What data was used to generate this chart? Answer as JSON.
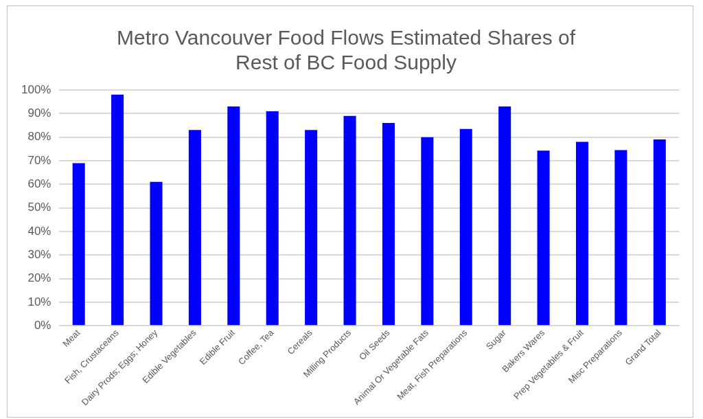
{
  "chart_data": {
    "type": "bar",
    "title": [
      "Metro Vancouver Food Flows Estimated Shares of",
      "Rest of BC Food Supply"
    ],
    "categories": [
      "Meat",
      "Fish, Crustaceans",
      "Dairy Prods; Eggs; Honey",
      "Edible Vegetables",
      "Edible Fruit",
      "Coffee, Tea",
      "Cereals",
      "Milling Products",
      "Oil Seeds",
      "Animal Or Vegetable Fats",
      "Meat, Fish Preparations",
      "Sugar",
      "Bakers Wares",
      "Prep Vegetables & Fruit",
      "Misc Preparations",
      "Grand Total"
    ],
    "values": [
      69,
      98,
      61,
      83,
      93,
      91,
      83,
      89,
      86,
      80,
      83.5,
      93,
      74.3,
      78,
      74.5,
      79
    ],
    "color": "#0000ff",
    "ylim": [
      0,
      100
    ],
    "yticks": [
      {
        "value": 0,
        "label": "0%"
      },
      {
        "value": 10,
        "label": "10%"
      },
      {
        "value": 20,
        "label": "20%"
      },
      {
        "value": 30,
        "label": "30%"
      },
      {
        "value": 40,
        "label": "40%"
      },
      {
        "value": 50,
        "label": "50%"
      },
      {
        "value": 60,
        "label": "60%"
      },
      {
        "value": 70,
        "label": "70%"
      },
      {
        "value": 80,
        "label": "80%"
      },
      {
        "value": 90,
        "label": "90%"
      },
      {
        "value": 100,
        "label": "100%"
      }
    ],
    "grid": "y",
    "legend": false
  }
}
